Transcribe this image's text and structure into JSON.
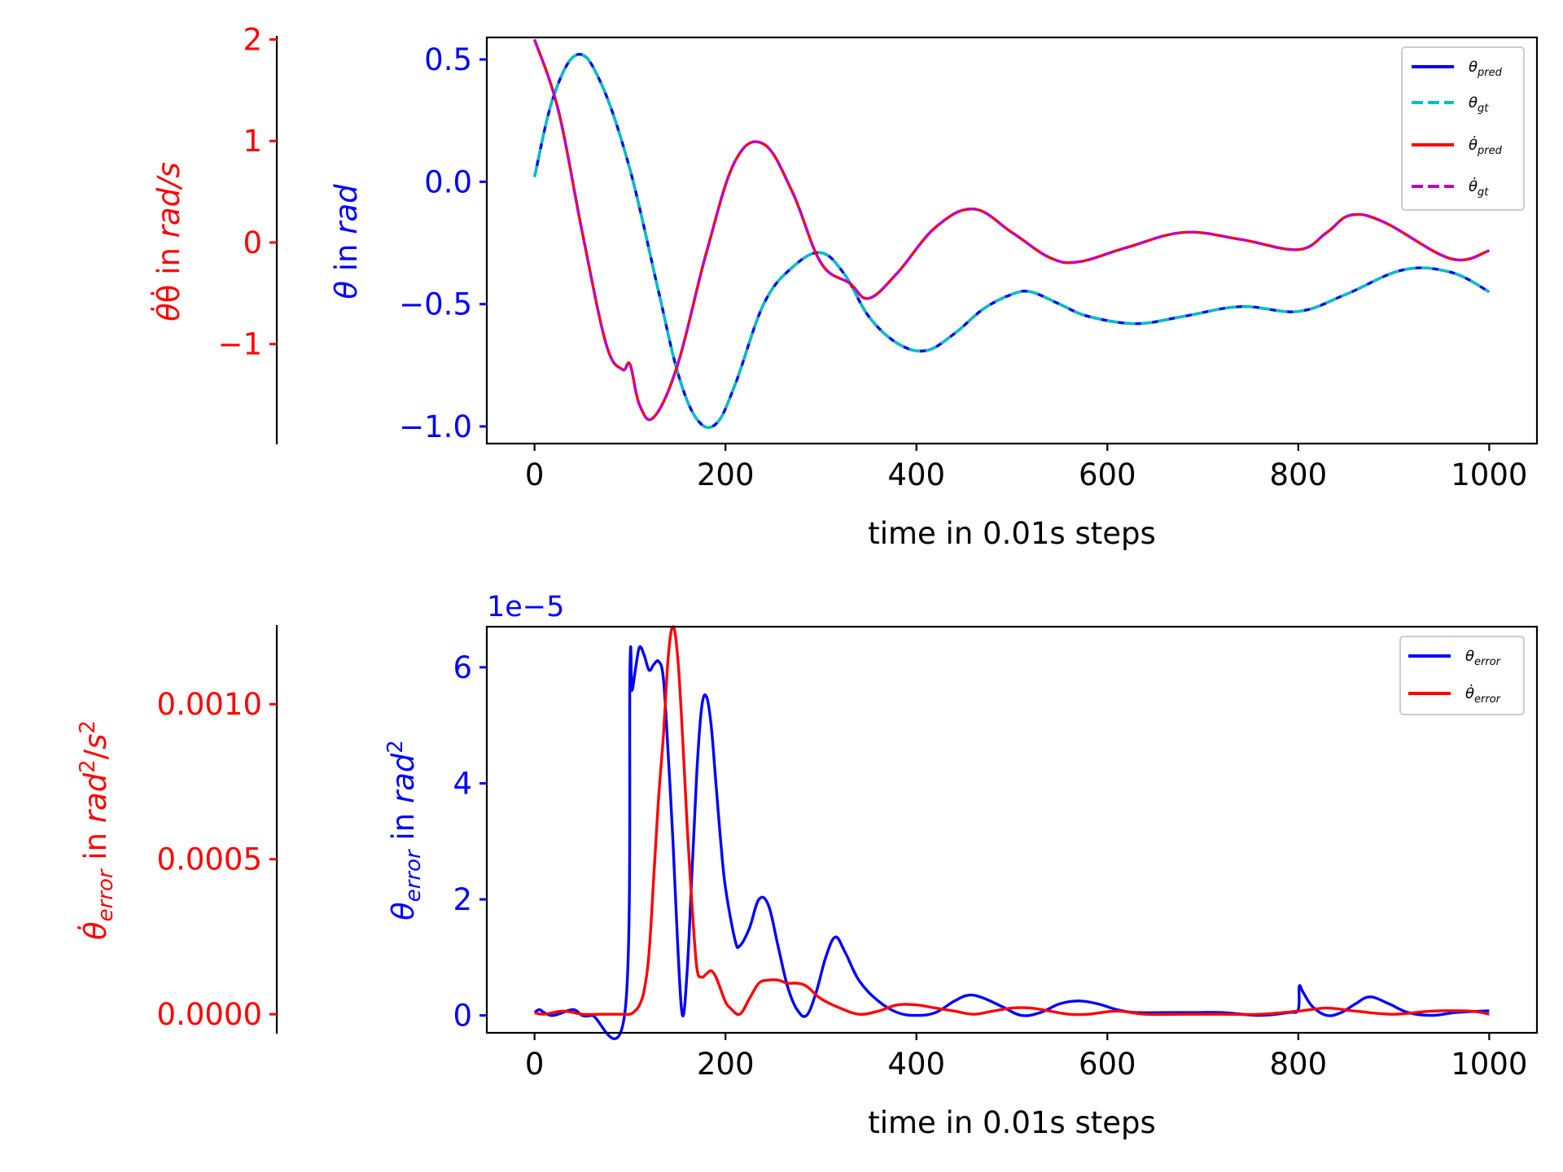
{
  "chart_data": [
    {
      "type": "line",
      "xlabel": "time in 0.01s steps",
      "xlim": [
        -50,
        1050
      ],
      "x_ticks": [
        "0",
        "200",
        "400",
        "600",
        "800",
        "1000"
      ],
      "left_axis": {
        "label": "θ̇ in rad/s",
        "label_plain": "θ̇ in ",
        "label_italic": "rad/s",
        "color": "#ff0000",
        "ylim": [
          -1.98,
          2.02
        ],
        "ticks": [
          2,
          1,
          0,
          -1
        ],
        "tick_labels": [
          "2",
          "1",
          "0",
          "−1"
        ]
      },
      "right_axis": {
        "label": "θ in rad",
        "label_plain": " in ",
        "label_italic": "rad",
        "color": "#0000ff",
        "ylim": [
          -1.07,
          0.59
        ],
        "ticks": [
          0.5,
          0.0,
          -0.5,
          -1.0
        ],
        "tick_labels": [
          "0.5",
          "0.0",
          "−0.5",
          "−1.0"
        ]
      },
      "legend": {
        "placement": "top-right",
        "entries": [
          "θpred",
          "θgt",
          "θ̇pred",
          "θ̇gt"
        ]
      },
      "series": [
        {
          "name": "θpred",
          "color": "#0000ff",
          "dash": "solid",
          "x": [
            0,
            20,
            45,
            70,
            100,
            130,
            150,
            170,
            190,
            210,
            240,
            270,
            300,
            325,
            350,
            380,
            410,
            440,
            470,
            500,
            520,
            550,
            580,
            630,
            680,
            740,
            800,
            850,
            910,
            960,
            1000
          ],
          "y": [
            0.02,
            0.35,
            0.52,
            0.4,
            0.05,
            -0.45,
            -0.78,
            -0.97,
            -0.99,
            -0.83,
            -0.5,
            -0.35,
            -0.29,
            -0.38,
            -0.55,
            -0.66,
            -0.69,
            -0.62,
            -0.52,
            -0.46,
            -0.45,
            -0.5,
            -0.55,
            -0.58,
            -0.55,
            -0.51,
            -0.53,
            -0.46,
            -0.36,
            -0.37,
            -0.45
          ]
        },
        {
          "name": "θgt",
          "color": "#00bfbf",
          "dash": "dashed",
          "x": [
            0,
            20,
            45,
            70,
            100,
            130,
            150,
            170,
            190,
            210,
            240,
            270,
            300,
            325,
            350,
            380,
            410,
            440,
            470,
            500,
            520,
            550,
            580,
            630,
            680,
            740,
            800,
            850,
            910,
            960,
            1000
          ],
          "y": [
            0.02,
            0.35,
            0.52,
            0.4,
            0.05,
            -0.45,
            -0.78,
            -0.97,
            -0.99,
            -0.83,
            -0.5,
            -0.35,
            -0.29,
            -0.38,
            -0.55,
            -0.66,
            -0.69,
            -0.62,
            -0.52,
            -0.46,
            -0.45,
            -0.5,
            -0.55,
            -0.58,
            -0.55,
            -0.51,
            -0.53,
            -0.46,
            -0.36,
            -0.37,
            -0.45
          ]
        },
        {
          "name": "θ̇pred",
          "color": "#ff0000",
          "dash": "solid",
          "x": [
            0,
            25,
            50,
            75,
            92,
            100,
            110,
            125,
            150,
            180,
            210,
            240,
            270,
            300,
            330,
            350,
            380,
            420,
            460,
            500,
            540,
            570,
            620,
            680,
            740,
            800,
            830,
            855,
            890,
            960,
            1000
          ],
          "y": [
            2.0,
            1.3,
            0.1,
            -1.0,
            -1.25,
            -1.2,
            -1.6,
            -1.72,
            -1.2,
            -0.1,
            0.8,
            0.97,
            0.5,
            -0.2,
            -0.4,
            -0.55,
            -0.3,
            0.15,
            0.33,
            0.1,
            -0.15,
            -0.19,
            -0.05,
            0.1,
            0.03,
            -0.07,
            0.1,
            0.27,
            0.2,
            -0.16,
            -0.08
          ]
        },
        {
          "name": "θ̇gt",
          "color": "#bf00bf",
          "dash": "dashed",
          "x": [
            0,
            25,
            50,
            75,
            92,
            100,
            110,
            125,
            150,
            180,
            210,
            240,
            270,
            300,
            330,
            350,
            380,
            420,
            460,
            500,
            540,
            570,
            620,
            680,
            740,
            800,
            830,
            855,
            890,
            960,
            1000
          ],
          "y": [
            2.0,
            1.3,
            0.1,
            -1.0,
            -1.25,
            -1.2,
            -1.6,
            -1.72,
            -1.2,
            -0.1,
            0.8,
            0.97,
            0.5,
            -0.2,
            -0.4,
            -0.55,
            -0.3,
            0.15,
            0.33,
            0.1,
            -0.15,
            -0.19,
            -0.05,
            0.1,
            0.03,
            -0.07,
            0.1,
            0.27,
            0.2,
            -0.16,
            -0.08
          ]
        }
      ]
    },
    {
      "type": "line",
      "xlabel": "time in 0.01s steps",
      "xlim": [
        -50,
        1050
      ],
      "x_ticks": [
        "0",
        "200",
        "400",
        "600",
        "800",
        "1000"
      ],
      "left_axis": {
        "label": "θ̇error in rad²/s²",
        "color": "#ff0000",
        "ylim": [
          -6e-05,
          0.00125
        ],
        "ticks": [
          0.001,
          0.0005,
          0.0
        ],
        "tick_labels": [
          "0.0010",
          "0.0005",
          "0.0000"
        ]
      },
      "right_axis": {
        "label": "θerror in rad²",
        "color": "#0000ff",
        "offset_text": "1e−5",
        "ylim": [
          -0.3,
          6.7
        ],
        "ticks": [
          6,
          4,
          2,
          0
        ],
        "tick_labels": [
          "6",
          "4",
          "2",
          "0"
        ]
      },
      "legend": {
        "placement": "top-right",
        "entries": [
          "θerror",
          "θ̇error"
        ]
      },
      "series": [
        {
          "name": "θerror",
          "color": "#0000ff",
          "dash": "solid",
          "x": [
            0,
            5,
            10,
            20,
            40,
            50,
            60,
            95,
            100,
            102,
            106,
            110,
            115,
            120,
            125,
            130,
            135,
            140,
            145,
            150,
            155,
            160,
            165,
            170,
            175,
            180,
            185,
            190,
            195,
            200,
            210,
            215,
            225,
            235,
            245,
            255,
            265,
            275,
            285,
            295,
            305,
            315,
            325,
            340,
            360,
            380,
            400,
            420,
            440,
            455,
            470,
            490,
            510,
            530,
            550,
            570,
            590,
            610,
            630,
            660,
            690,
            720,
            760,
            790,
            800,
            801,
            805,
            815,
            830,
            845,
            860,
            875,
            895,
            915,
            940,
            965,
            1000
          ],
          "y": [
            0.05,
            0.1,
            0.05,
            0.0,
            0.1,
            0.0,
            0.0,
            0.1,
            6.0,
            5.6,
            6.0,
            6.35,
            6.2,
            5.95,
            6.05,
            6.1,
            5.8,
            4.5,
            3.0,
            1.2,
            0.0,
            0.8,
            2.5,
            4.2,
            5.3,
            5.5,
            5.0,
            4.0,
            3.0,
            2.2,
            1.3,
            1.2,
            1.5,
            2.0,
            1.9,
            1.2,
            0.5,
            0.1,
            0.0,
            0.4,
            1.0,
            1.35,
            1.1,
            0.6,
            0.25,
            0.05,
            0.0,
            0.05,
            0.25,
            0.35,
            0.3,
            0.15,
            0.0,
            0.05,
            0.2,
            0.25,
            0.2,
            0.1,
            0.05,
            0.05,
            0.05,
            0.05,
            0.0,
            0.05,
            0.1,
            0.5,
            0.4,
            0.15,
            0.0,
            0.05,
            0.2,
            0.32,
            0.2,
            0.05,
            0.0,
            0.05,
            0.08
          ]
        },
        {
          "name": "θ̇error",
          "color": "#ff0000",
          "dash": "solid",
          "x": [
            0,
            10,
            30,
            50,
            70,
            90,
            100,
            105,
            110,
            115,
            120,
            125,
            130,
            135,
            140,
            145,
            150,
            155,
            160,
            165,
            170,
            175,
            180,
            185,
            190,
            195,
            200,
            205,
            215,
            225,
            235,
            245,
            255,
            265,
            275,
            285,
            300,
            320,
            340,
            360,
            380,
            400,
            420,
            440,
            460,
            480,
            500,
            520,
            540,
            560,
            580,
            610,
            640,
            680,
            720,
            760,
            800,
            830,
            860,
            900,
            940,
            980,
            1000
          ],
          "y": [
            5e-06,
            0.0,
            1e-05,
            0.0,
            0.0,
            0.0,
            0.0,
            1e-05,
            3e-05,
            8e-05,
            0.0002,
            0.00045,
            0.0007,
            0.0009,
            0.00115,
            0.00125,
            0.00115,
            0.0009,
            0.0006,
            0.00035,
            0.00015,
            0.00012,
            0.00013,
            0.00014,
            0.00012,
            8e-05,
            4e-05,
            2e-05,
            0.0,
            5e-05,
            0.0001,
            0.00011,
            0.00011,
            0.0001,
            0.0001,
            9e-05,
            5e-05,
            2e-05,
            0.0,
            1e-05,
            3e-05,
            3e-05,
            2e-05,
            1e-05,
            0.0,
            1e-05,
            2e-05,
            2e-05,
            1e-05,
            0.0,
            0.0,
            1e-05,
            0.0,
            0.0,
            0.0,
            0.0,
            1e-05,
            2e-05,
            1e-05,
            0.0,
            1e-05,
            1e-05,
            0.0
          ]
        }
      ]
    }
  ]
}
